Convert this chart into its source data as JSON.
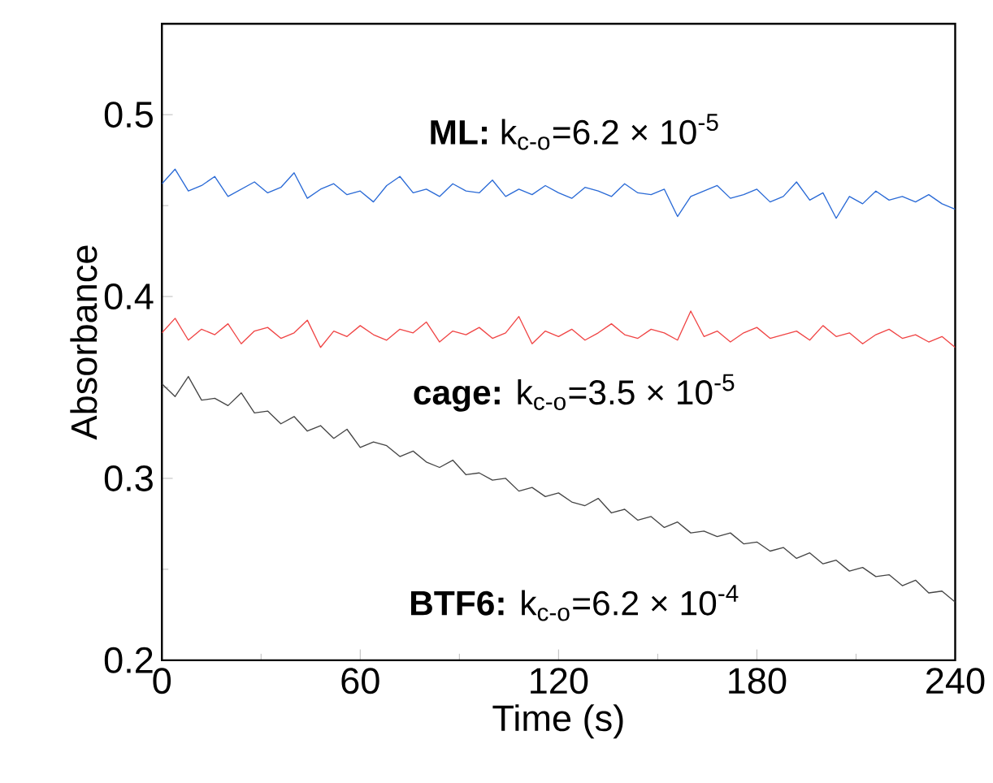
{
  "chart_data": {
    "type": "line",
    "xlabel": "Time (s)",
    "ylabel": "Absorbance",
    "x": [
      0,
      4,
      8,
      12,
      16,
      20,
      24,
      28,
      32,
      36,
      40,
      44,
      48,
      52,
      56,
      60,
      64,
      68,
      72,
      76,
      80,
      84,
      88,
      92,
      96,
      100,
      104,
      108,
      112,
      116,
      120,
      124,
      128,
      132,
      136,
      140,
      144,
      148,
      152,
      156,
      160,
      164,
      168,
      172,
      176,
      180,
      184,
      188,
      192,
      196,
      200,
      204,
      208,
      212,
      216,
      220,
      224,
      228,
      232,
      236,
      240
    ],
    "series": [
      {
        "color": "#2a6ad6",
        "values": [
          0.462,
          0.47,
          0.458,
          0.461,
          0.466,
          0.455,
          0.459,
          0.463,
          0.457,
          0.46,
          0.468,
          0.454,
          0.459,
          0.462,
          0.456,
          0.458,
          0.452,
          0.461,
          0.466,
          0.457,
          0.459,
          0.455,
          0.462,
          0.458,
          0.457,
          0.464,
          0.455,
          0.459,
          0.456,
          0.461,
          0.457,
          0.454,
          0.46,
          0.458,
          0.455,
          0.462,
          0.457,
          0.456,
          0.459,
          0.444,
          0.455,
          0.458,
          0.461,
          0.454,
          0.456,
          0.459,
          0.452,
          0.455,
          0.463,
          0.453,
          0.457,
          0.443,
          0.455,
          0.451,
          0.458,
          0.453,
          0.455,
          0.452,
          0.456,
          0.451,
          0.448
        ]
      },
      {
        "color": "#f04545",
        "values": [
          0.38,
          0.388,
          0.376,
          0.382,
          0.379,
          0.385,
          0.374,
          0.381,
          0.383,
          0.377,
          0.38,
          0.387,
          0.372,
          0.381,
          0.378,
          0.384,
          0.379,
          0.376,
          0.382,
          0.38,
          0.386,
          0.375,
          0.381,
          0.379,
          0.383,
          0.377,
          0.38,
          0.389,
          0.374,
          0.381,
          0.378,
          0.382,
          0.376,
          0.38,
          0.385,
          0.379,
          0.377,
          0.382,
          0.38,
          0.376,
          0.392,
          0.378,
          0.381,
          0.375,
          0.38,
          0.383,
          0.377,
          0.379,
          0.381,
          0.376,
          0.384,
          0.378,
          0.38,
          0.374,
          0.379,
          0.382,
          0.377,
          0.379,
          0.375,
          0.378,
          0.372
        ]
      },
      {
        "color": "#454545",
        "values": [
          0.352,
          0.345,
          0.356,
          0.343,
          0.344,
          0.34,
          0.347,
          0.336,
          0.337,
          0.33,
          0.334,
          0.326,
          0.329,
          0.322,
          0.327,
          0.317,
          0.32,
          0.318,
          0.312,
          0.315,
          0.309,
          0.306,
          0.31,
          0.302,
          0.303,
          0.299,
          0.3,
          0.293,
          0.295,
          0.29,
          0.292,
          0.287,
          0.285,
          0.289,
          0.281,
          0.283,
          0.277,
          0.279,
          0.273,
          0.276,
          0.27,
          0.271,
          0.268,
          0.27,
          0.264,
          0.265,
          0.26,
          0.262,
          0.256,
          0.259,
          0.253,
          0.255,
          0.249,
          0.251,
          0.246,
          0.247,
          0.241,
          0.244,
          0.237,
          0.238,
          0.232
        ]
      }
    ],
    "xlim": [
      0,
      240
    ],
    "xticks": [
      0,
      60,
      120,
      180,
      240
    ],
    "ylim": [
      0.2,
      0.55
    ],
    "yticks": [
      0.2,
      0.3,
      0.4,
      0.5
    ],
    "grid": false,
    "marker": "none",
    "line_style": "solid",
    "annotations": [
      "**ML:** k$_{c-o}$=6.2 × 10$^{-5}$",
      "**cage:**  k$_{c-o}$=3.5 × 10$^{-5}$",
      "**BTF6:** k$_{c-o}$=6.2 × 10$^{-4}$"
    ]
  }
}
